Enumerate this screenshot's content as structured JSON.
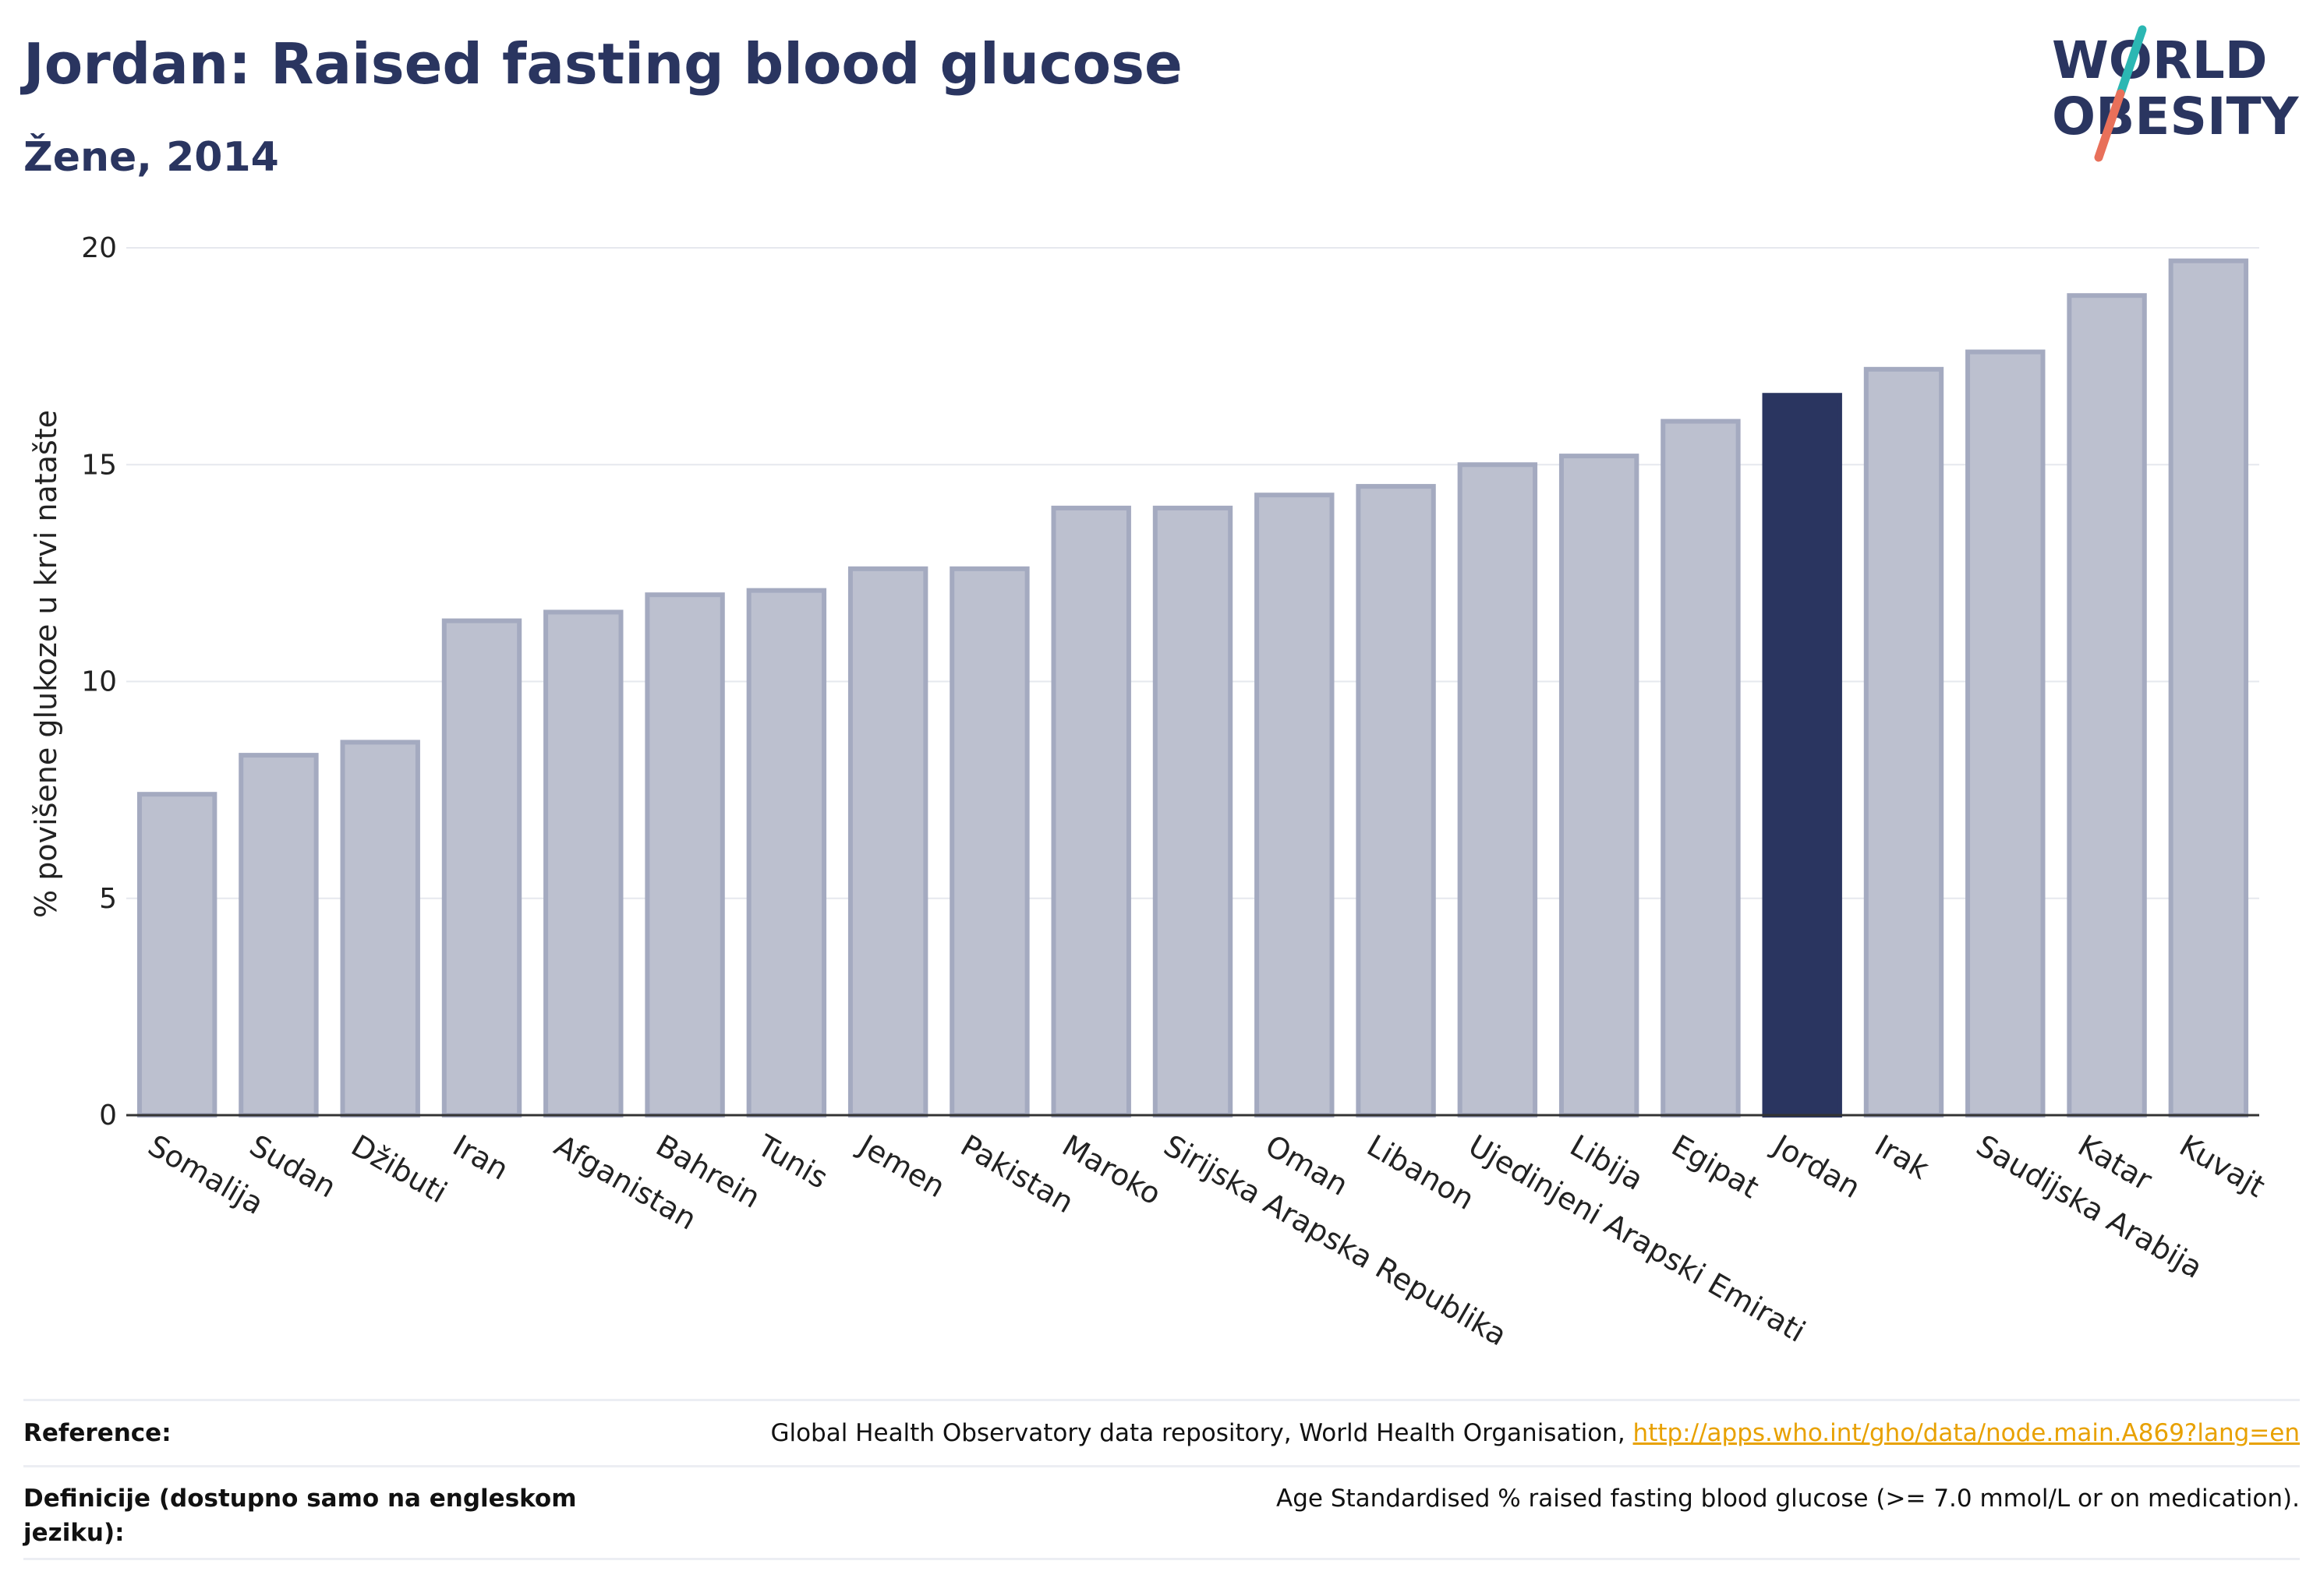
{
  "header": {
    "title": "Jordan: Raised fasting blood glucose",
    "subtitle": "Žene, 2014"
  },
  "logo": {
    "line1": "WORLD",
    "line2": "OBESITY",
    "colors": {
      "text": "#2a3560",
      "teal": "#2bb7b3",
      "coral": "#e8705a"
    }
  },
  "chart_data": {
    "type": "bar",
    "ylabel": "% povišene glukoze u krvi natašte",
    "xlabel": "",
    "ylim": [
      0,
      20
    ],
    "yticks": [
      0,
      5,
      10,
      15,
      20
    ],
    "grid": true,
    "highlight": "Jordan",
    "categories": [
      "Somalija",
      "Sudan",
      "Džibuti",
      "Iran",
      "Afganistan",
      "Bahrein",
      "Tunis",
      "Jemen",
      "Pakistan",
      "Maroko",
      "Sirijska Arapska Republika",
      "Oman",
      "Libanon",
      "Ujedinjeni Arapski Emirati",
      "Libija",
      "Egipat",
      "Jordan",
      "Irak",
      "Saudijska Arabija",
      "Katar",
      "Kuvajt"
    ],
    "values": [
      7.4,
      8.3,
      8.6,
      11.4,
      11.6,
      12.0,
      12.1,
      12.6,
      12.6,
      14.0,
      14.0,
      14.3,
      14.5,
      15.0,
      15.2,
      16.0,
      16.6,
      17.2,
      17.6,
      18.9,
      19.7
    ],
    "colors": {
      "bar": "#bcc0cf",
      "bar_border": "#a4aac0",
      "highlight": "#2a3560"
    }
  },
  "footer": {
    "reference_label": "Reference:",
    "reference_text": "Global Health Observatory data repository, World Health Organisation, ",
    "reference_link": "http://apps.who.int/gho/data/node.main.A869?lang=en",
    "definition_label": "Definicije (dostupno samo na engleskom jeziku):",
    "definition_text": "Age Standardised % raised fasting blood glucose (>= 7.0 mmol/L or on medication)."
  }
}
